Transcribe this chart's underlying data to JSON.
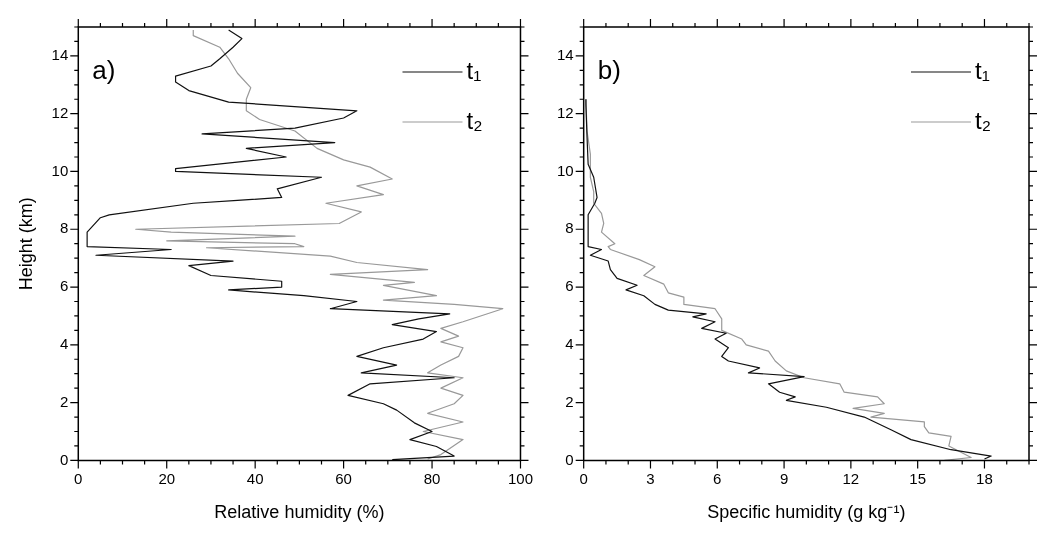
{
  "chart_data": [
    {
      "type": "line",
      "title": "a)",
      "xlabel": "Relative humidity (%)",
      "ylabel": "Height (km)",
      "legend": "top right",
      "xlim": [
        0,
        100
      ],
      "ylim": [
        0,
        15
      ],
      "xticks": [
        0,
        {
          "value": 5,
          "label": null
        },
        {
          "value": 10,
          "label": null
        },
        {
          "value": 15,
          "label": null
        },
        20,
        {
          "value": 25,
          "label": null
        },
        {
          "value": 30,
          "label": null
        },
        {
          "value": 35,
          "label": null
        },
        40,
        {
          "value": 45,
          "label": null
        },
        {
          "value": 50,
          "label": null
        },
        {
          "value": 55,
          "label": null
        },
        60,
        {
          "value": 65,
          "label": null
        },
        {
          "value": 70,
          "label": null
        },
        {
          "value": 75,
          "label": null
        },
        80,
        {
          "value": 85,
          "label": null
        },
        {
          "value": 90,
          "label": null
        },
        {
          "value": 95,
          "label": null
        },
        100
      ],
      "yticks": [
        0,
        {
          "value": 0.5,
          "label": null
        },
        {
          "value": 1,
          "label": null
        },
        {
          "value": 1.5,
          "label": null
        },
        2,
        {
          "value": 2.5,
          "label": null
        },
        {
          "value": 3,
          "label": null
        },
        {
          "value": 3.5,
          "label": null
        },
        4,
        {
          "value": 4.5,
          "label": null
        },
        {
          "value": 5,
          "label": null
        },
        {
          "value": 5.5,
          "label": null
        },
        6,
        {
          "value": 6.5,
          "label": null
        },
        {
          "value": 7,
          "label": null
        },
        {
          "value": 7.5,
          "label": null
        },
        8,
        {
          "value": 8.5,
          "label": null
        },
        {
          "value": 9,
          "label": null
        },
        {
          "value": 9.5,
          "label": null
        },
        10,
        {
          "value": 10.5,
          "label": null
        },
        {
          "value": 11,
          "label": null
        },
        {
          "value": 11.5,
          "label": null
        },
        12,
        {
          "value": 12.5,
          "label": null
        },
        {
          "value": 13,
          "label": null
        },
        {
          "value": 13.5,
          "label": null
        },
        14,
        {
          "value": 14.5,
          "label": null
        },
        {
          "value": 15,
          "label": null
        }
      ],
      "series": [
        {
          "name": "t₁",
          "color": "#111111",
          "x": [
            71,
            85,
            81,
            75,
            80,
            76,
            72,
            69,
            61,
            66,
            85,
            64,
            72,
            63,
            69,
            78,
            81,
            71,
            77,
            84,
            57,
            63,
            51,
            34,
            46,
            46,
            30,
            25,
            35,
            4,
            21,
            2,
            2,
            5,
            7,
            26,
            36,
            46,
            45,
            55,
            22,
            22,
            47,
            38,
            58,
            28,
            49,
            60,
            63,
            34,
            25,
            22,
            22,
            30,
            32,
            35,
            37,
            34
          ],
          "values": [
            0.03,
            0.15,
            0.48,
            0.72,
            1.0,
            1.3,
            1.74,
            1.96,
            2.25,
            2.65,
            2.86,
            3.03,
            3.3,
            3.6,
            3.9,
            4.2,
            4.46,
            4.7,
            4.9,
            5.07,
            5.25,
            5.5,
            5.7,
            5.9,
            6.0,
            6.2,
            6.4,
            6.74,
            6.9,
            7.1,
            7.3,
            7.4,
            7.9,
            8.4,
            8.5,
            8.9,
            9.0,
            9.1,
            9.4,
            9.8,
            10.0,
            10.1,
            10.5,
            10.8,
            11.0,
            11.3,
            11.5,
            11.85,
            12.1,
            12.4,
            12.8,
            13.1,
            13.3,
            13.65,
            13.9,
            14.3,
            14.6,
            14.9
          ]
        },
        {
          "name": "t₂",
          "color": "#999999",
          "x": [
            79,
            82,
            87,
            78,
            87,
            79,
            85,
            87,
            82,
            87,
            79,
            82,
            86,
            87,
            82,
            86,
            82,
            87,
            96,
            85,
            69,
            81,
            69,
            76,
            57,
            79,
            63,
            57,
            29,
            51,
            49,
            20,
            49,
            21,
            13,
            59,
            64,
            56,
            69,
            63,
            71,
            66,
            60,
            54,
            49,
            41,
            38,
            38,
            39,
            36,
            34,
            32,
            26,
            26
          ],
          "values": [
            0.05,
            0.2,
            0.72,
            1.0,
            1.33,
            1.63,
            1.96,
            2.25,
            2.5,
            2.86,
            3.03,
            3.3,
            3.6,
            3.9,
            4.1,
            4.3,
            4.57,
            4.8,
            5.25,
            5.4,
            5.55,
            5.7,
            6.06,
            6.16,
            6.44,
            6.6,
            6.85,
            7.07,
            7.36,
            7.4,
            7.5,
            7.6,
            7.76,
            7.9,
            8.0,
            8.2,
            8.6,
            8.9,
            9.2,
            9.5,
            9.74,
            10.15,
            10.4,
            10.8,
            11.4,
            11.8,
            12.1,
            12.5,
            12.9,
            13.4,
            13.9,
            14.3,
            14.7,
            14.9
          ]
        }
      ]
    },
    {
      "type": "line",
      "title": "b)",
      "xlabel": "Specific humidity (g kg⁻¹)",
      "legend": "top right",
      "xlim": [
        0,
        20
      ],
      "ylim": [
        0,
        15
      ],
      "xticks": [
        0,
        {
          "value": 1,
          "label": null
        },
        {
          "value": 2,
          "label": null
        },
        3,
        {
          "value": 4,
          "label": null
        },
        {
          "value": 5,
          "label": null
        },
        6,
        {
          "value": 7,
          "label": null
        },
        {
          "value": 8,
          "label": null
        },
        9,
        {
          "value": 10,
          "label": null
        },
        {
          "value": 11,
          "label": null
        },
        12,
        {
          "value": 13,
          "label": null
        },
        {
          "value": 14,
          "label": null
        },
        15,
        {
          "value": 16,
          "label": null
        },
        {
          "value": 17,
          "label": null
        },
        18,
        {
          "value": 19,
          "label": null
        },
        {
          "value": 20,
          "label": null
        }
      ],
      "yticks": [
        0,
        {
          "value": 0.5,
          "label": null
        },
        {
          "value": 1,
          "label": null
        },
        {
          "value": 1.5,
          "label": null
        },
        2,
        {
          "value": 2.5,
          "label": null
        },
        {
          "value": 3,
          "label": null
        },
        {
          "value": 3.5,
          "label": null
        },
        4,
        {
          "value": 4.5,
          "label": null
        },
        {
          "value": 5,
          "label": null
        },
        {
          "value": 5.5,
          "label": null
        },
        6,
        {
          "value": 6.5,
          "label": null
        },
        {
          "value": 7,
          "label": null
        },
        {
          "value": 7.5,
          "label": null
        },
        8,
        {
          "value": 8.5,
          "label": null
        },
        {
          "value": 9,
          "label": null
        },
        {
          "value": 9.5,
          "label": null
        },
        10,
        {
          "value": 10.5,
          "label": null
        },
        {
          "value": 11,
          "label": null
        },
        {
          "value": 11.5,
          "label": null
        },
        12,
        {
          "value": 12.5,
          "label": null
        },
        {
          "value": 13,
          "label": null
        },
        {
          "value": 13.5,
          "label": null
        },
        14,
        {
          "value": 14.5,
          "label": null
        },
        {
          "value": 15,
          "label": null
        }
      ],
      "series": [
        {
          "name": "t₁",
          "color": "#111111",
          "x": [
            18.0,
            18.3,
            16.5,
            14.7,
            13.8,
            12.6,
            10.9,
            9.1,
            9.5,
            8.8,
            8.3,
            9.9,
            7.4,
            7.9,
            6.5,
            6.2,
            6.5,
            5.9,
            6.4,
            5.3,
            5.9,
            4.9,
            5.5,
            3.8,
            3.2,
            2.7,
            1.9,
            2.4,
            1.5,
            1.2,
            1.1,
            0.3,
            0.8,
            0.2,
            0.2,
            0.5,
            0.6,
            0.45,
            0.2,
            0.15,
            0.1,
            0.1
          ],
          "values": [
            0.05,
            0.15,
            0.37,
            0.72,
            1.06,
            1.5,
            1.84,
            2.08,
            2.2,
            2.36,
            2.65,
            2.9,
            3.03,
            3.2,
            3.44,
            3.6,
            3.9,
            4.2,
            4.4,
            4.57,
            4.8,
            4.97,
            5.07,
            5.2,
            5.4,
            5.7,
            5.9,
            6.06,
            6.3,
            6.6,
            6.9,
            7.1,
            7.3,
            7.4,
            8.5,
            8.9,
            9.1,
            9.8,
            10.25,
            11.2,
            12.3,
            12.5
          ]
        },
        {
          "name": "t₂",
          "color": "#999999",
          "x": [
            16.2,
            17.4,
            16.4,
            16.5,
            15.5,
            15.3,
            15.3,
            12.9,
            13.5,
            12.1,
            13.5,
            13.2,
            11.7,
            11.5,
            9.9,
            9.1,
            8.6,
            8.3,
            7.3,
            7.1,
            6.2,
            6.2,
            5.9,
            4.5,
            4.5,
            3.8,
            3.6,
            2.7,
            3.2,
            2.5,
            1.2,
            1.1,
            1.4,
            0.8,
            0.9,
            0.8,
            0.45,
            0.45,
            0.3,
            0.3,
            0.15,
            0.1
          ],
          "values": [
            0.0,
            0.1,
            0.5,
            0.83,
            0.95,
            1.17,
            1.33,
            1.5,
            1.63,
            1.8,
            1.96,
            2.2,
            2.36,
            2.65,
            2.86,
            3.1,
            3.44,
            3.78,
            4.0,
            4.2,
            4.5,
            4.9,
            5.25,
            5.4,
            5.65,
            5.8,
            6.1,
            6.4,
            6.7,
            6.95,
            7.3,
            7.4,
            7.5,
            7.9,
            8.2,
            8.55,
            8.9,
            9.3,
            9.8,
            10.6,
            11.4,
            12.5
          ]
        }
      ]
    }
  ]
}
